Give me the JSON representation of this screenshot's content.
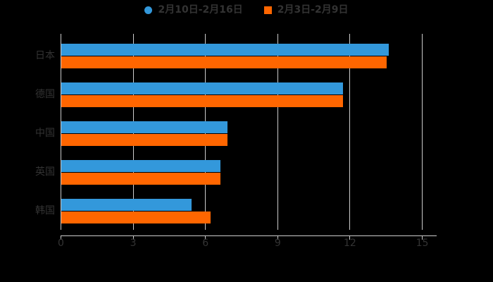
{
  "chart": {
    "background": "#000000",
    "grid_color": "#cccccc",
    "axis_color": "#cccccc",
    "text_color": "#333333",
    "legend": [
      {
        "label": "2月10日-2月16日",
        "marker": "circle",
        "color": "#3398db"
      },
      {
        "label": "2月3日-2月9日",
        "marker": "square",
        "color": "#ff6600"
      }
    ]
  },
  "chart_data": {
    "type": "bar",
    "orientation": "horizontal",
    "title": "",
    "xlabel": "",
    "ylabel": "",
    "categories": [
      "日本",
      "德国",
      "中国",
      "英国",
      "韩国"
    ],
    "series": [
      {
        "name": "2月10日-2月16日",
        "color": "#3398db",
        "values": [
          13.6,
          11.7,
          6.9,
          6.6,
          5.4
        ]
      },
      {
        "name": "2月3日-2月9日",
        "color": "#ff6600",
        "values": [
          13.5,
          11.7,
          6.9,
          6.6,
          6.2
        ]
      }
    ],
    "xlim": [
      0,
      15
    ],
    "xticks": [
      0,
      3,
      6,
      9,
      12,
      15
    ],
    "grid": true,
    "legend_position": "top"
  }
}
